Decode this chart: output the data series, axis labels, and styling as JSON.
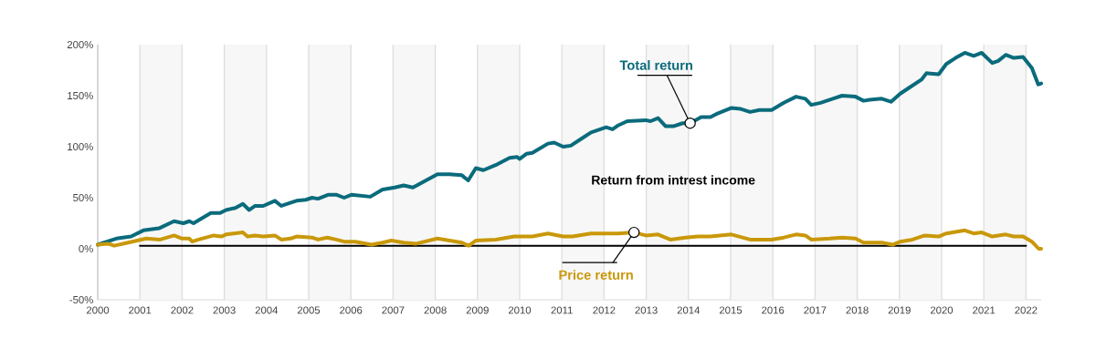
{
  "chart_data": {
    "type": "line",
    "annotations": [
      "Return from intrest income"
    ],
    "xlim": [
      2000,
      2022.36
    ],
    "xticks": [
      2000,
      2001,
      2002,
      2003,
      2004,
      2005,
      2006,
      2007,
      2008,
      2009,
      2010,
      2011,
      2012,
      2013,
      2014,
      2015,
      2016,
      2017,
      2018,
      2019,
      2020,
      2021,
      2022
    ],
    "ylim": [
      -50,
      200
    ],
    "yticks": [
      {
        "value": -50,
        "label": "-50%"
      },
      {
        "value": 0,
        "label": "0%"
      },
      {
        "value": 50,
        "label": "50%"
      },
      {
        "value": 100,
        "label": "100%"
      },
      {
        "value": 150,
        "label": "150%"
      },
      {
        "value": 200,
        "label": "200%"
      }
    ],
    "grid": "x",
    "marker": "none",
    "line_style": "solid",
    "bands": [
      {
        "axis": "x",
        "from": 2001,
        "to": 2002,
        "color": "#f7f7f7"
      },
      {
        "axis": "x",
        "from": 2003,
        "to": 2004,
        "color": "#f7f7f7"
      },
      {
        "axis": "x",
        "from": 2005,
        "to": 2006,
        "color": "#f7f7f7"
      },
      {
        "axis": "x",
        "from": 2007,
        "to": 2008,
        "color": "#f7f7f7"
      },
      {
        "axis": "x",
        "from": 2009,
        "to": 2010,
        "color": "#f7f7f7"
      },
      {
        "axis": "x",
        "from": 2011,
        "to": 2012,
        "color": "#f7f7f7"
      },
      {
        "axis": "x",
        "from": 2013,
        "to": 2014,
        "color": "#f7f7f7"
      },
      {
        "axis": "x",
        "from": 2015,
        "to": 2016,
        "color": "#f7f7f7"
      },
      {
        "axis": "x",
        "from": 2017,
        "to": 2018,
        "color": "#f7f7f7"
      },
      {
        "axis": "x",
        "from": 2019,
        "to": 2020,
        "color": "#f7f7f7"
      },
      {
        "axis": "x",
        "from": 2021,
        "to": 2022,
        "color": "#f7f7f7"
      }
    ],
    "series": [
      {
        "color": "#000000",
        "x": [
          2001,
          2022
        ],
        "values": [
          3,
          3
        ]
      },
      {
        "name": "Total return",
        "color": "#0a6b7c",
        "x": [
          2000.0,
          2000.44,
          2000.79,
          2001.08,
          2001.45,
          2001.81,
          2002.03,
          2002.17,
          2002.27,
          2002.68,
          2002.9,
          2003.04,
          2003.26,
          2003.44,
          2003.59,
          2003.73,
          2003.92,
          2004.2,
          2004.35,
          2004.71,
          2004.93,
          2005.08,
          2005.22,
          2005.47,
          2005.65,
          2005.84,
          2006.02,
          2006.46,
          2006.75,
          2007.04,
          2007.25,
          2007.47,
          2007.69,
          2008.05,
          2008.34,
          2008.63,
          2008.78,
          2008.96,
          2009.14,
          2009.43,
          2009.76,
          2009.94,
          2010.0,
          2010.16,
          2010.3,
          2010.67,
          2010.82,
          2011.03,
          2011.21,
          2011.47,
          2011.69,
          2012.05,
          2012.2,
          2012.34,
          2012.55,
          2012.99,
          2013.1,
          2013.28,
          2013.46,
          2013.64,
          2013.86,
          2014.04,
          2014.3,
          2014.52,
          2014.66,
          2015.02,
          2015.24,
          2015.46,
          2015.68,
          2015.97,
          2016.26,
          2016.55,
          2016.77,
          2016.91,
          2017.13,
          2017.42,
          2017.64,
          2017.96,
          2018.15,
          2018.29,
          2018.58,
          2018.8,
          2019.02,
          2019.24,
          2019.53,
          2019.64,
          2019.93,
          2020.11,
          2020.33,
          2020.55,
          2020.76,
          2020.95,
          2021.2,
          2021.34,
          2021.52,
          2021.71,
          2021.93,
          2022.14,
          2022.29,
          2022.36
        ],
        "values": [
          4,
          10,
          12,
          18,
          20,
          27,
          25,
          27,
          25,
          35,
          35,
          38,
          40,
          44,
          38,
          42,
          42,
          47,
          42,
          47,
          48,
          50,
          49,
          53,
          53,
          50,
          53,
          51,
          58,
          60,
          62,
          60,
          65,
          73,
          73,
          72,
          67,
          79,
          77,
          82,
          89,
          90,
          88,
          93,
          94,
          103,
          104,
          100,
          101,
          108,
          114,
          119,
          117,
          121,
          125,
          126,
          125,
          128,
          120,
          120,
          123,
          123,
          129,
          129,
          132,
          138,
          137,
          134,
          136,
          136,
          143,
          149,
          147,
          141,
          143,
          147,
          150,
          149,
          145,
          146,
          147,
          144,
          152,
          158,
          166,
          172,
          171,
          181,
          187,
          192,
          189,
          192,
          182,
          184,
          190,
          187,
          188,
          177,
          161,
          162
        ]
      },
      {
        "name": "Price return",
        "color": "#c9980a",
        "x": [
          2000.0,
          2000.25,
          2000.39,
          2000.72,
          2001.15,
          2001.48,
          2001.81,
          2002.0,
          2002.17,
          2002.24,
          2002.39,
          2002.75,
          2002.93,
          2003.04,
          2003.44,
          2003.55,
          2003.73,
          2003.92,
          2004.2,
          2004.35,
          2004.57,
          2004.71,
          2005.08,
          2005.22,
          2005.44,
          2005.65,
          2005.84,
          2006.1,
          2006.49,
          2006.75,
          2006.96,
          2007.25,
          2007.55,
          2008.05,
          2008.63,
          2008.79,
          2008.96,
          2009.43,
          2009.87,
          2010.3,
          2010.67,
          2011.03,
          2011.25,
          2011.69,
          2012.05,
          2012.34,
          2012.71,
          2012.99,
          2013.28,
          2013.57,
          2013.93,
          2014.23,
          2014.52,
          2015.02,
          2015.46,
          2015.97,
          2016.26,
          2016.55,
          2016.77,
          2016.91,
          2017.35,
          2017.64,
          2017.96,
          2018.15,
          2018.58,
          2018.84,
          2019.02,
          2019.31,
          2019.6,
          2019.93,
          2020.11,
          2020.55,
          2020.76,
          2020.95,
          2021.2,
          2021.52,
          2021.71,
          2021.93,
          2022.14,
          2022.3,
          2022.36
        ],
        "values": [
          4,
          5,
          3,
          6,
          10,
          9,
          13,
          10,
          10,
          7,
          9,
          13,
          12,
          14,
          16,
          12,
          13,
          12,
          13,
          9,
          10,
          12,
          11,
          9,
          11,
          9,
          7,
          7,
          4,
          6,
          8,
          6,
          5,
          10,
          6,
          3,
          8,
          9,
          12,
          12,
          15,
          12,
          12,
          15,
          15,
          15,
          16,
          13,
          14,
          9,
          11,
          12,
          12,
          14,
          9,
          9,
          11,
          14,
          13,
          9,
          10,
          11,
          10,
          6,
          6,
          4,
          7,
          9,
          13,
          12,
          15,
          18,
          15,
          16,
          12,
          14,
          12,
          12,
          7,
          0,
          0
        ]
      }
    ]
  }
}
